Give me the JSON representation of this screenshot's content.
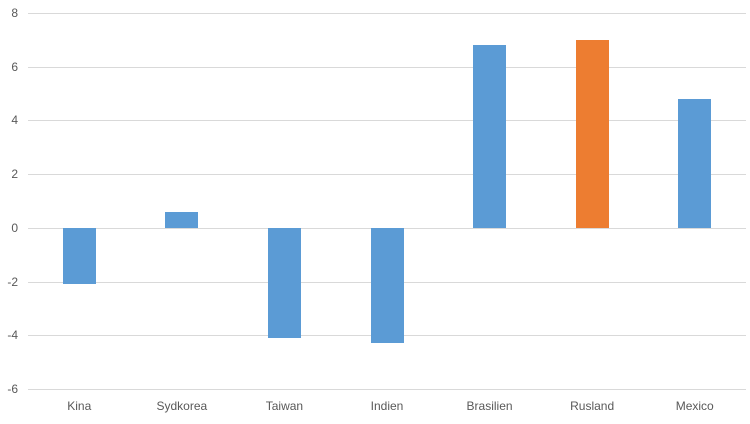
{
  "chart_data": {
    "type": "bar",
    "title": "",
    "xlabel": "",
    "ylabel": "",
    "categories": [
      "Kina",
      "Sydkorea",
      "Taiwan",
      "Indien",
      "Brasilien",
      "Rusland",
      "Mexico"
    ],
    "values": [
      -2.1,
      0.6,
      -4.1,
      -4.3,
      6.8,
      7.0,
      4.8
    ],
    "bar_colors": [
      "#5b9bd5",
      "#5b9bd5",
      "#5b9bd5",
      "#5b9bd5",
      "#5b9bd5",
      "#ed7d31",
      "#5b9bd5"
    ],
    "default_bar_color": "#5b9bd5",
    "highlight_bar_color": "#ed7d31",
    "ylim": [
      -6,
      8
    ],
    "yticks": [
      8,
      6,
      4,
      2,
      0,
      -2,
      -4,
      -6
    ],
    "grid": "horizontal",
    "gridline_color": "#d9d9d9",
    "tick_label_color": "#595959",
    "legend": "none",
    "background_color": "#ffffff"
  }
}
